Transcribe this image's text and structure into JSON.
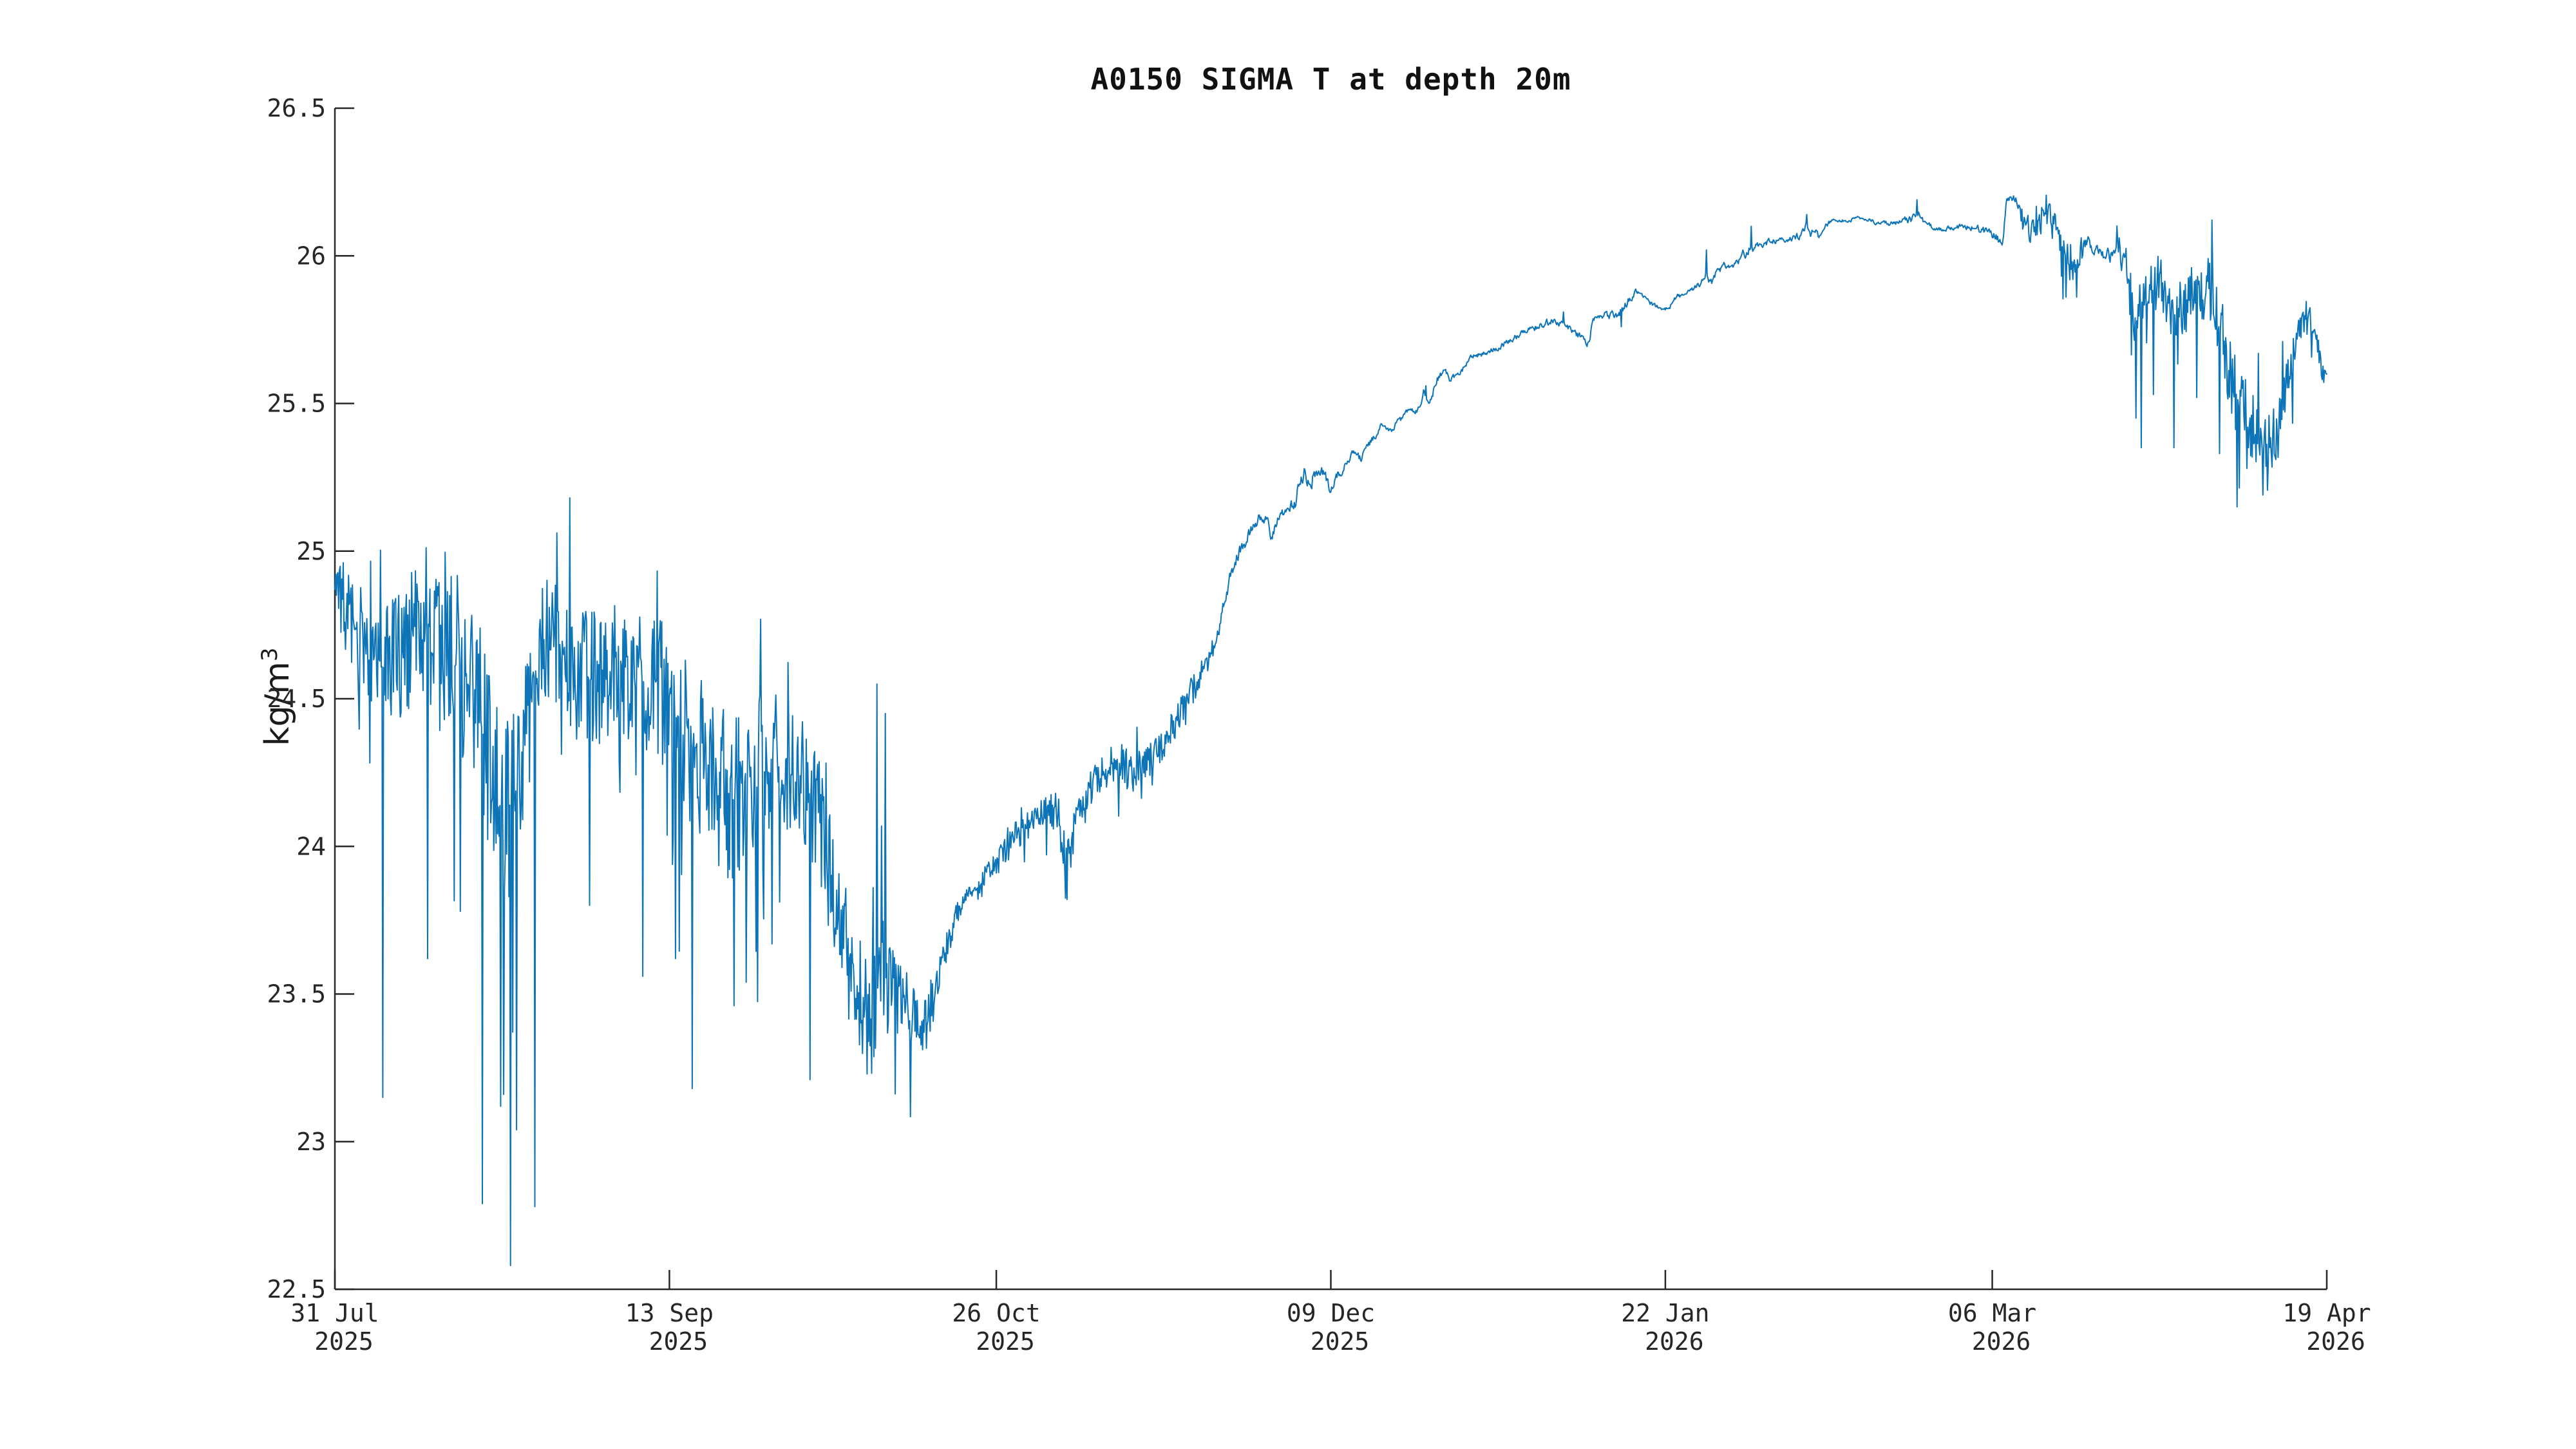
{
  "page": {
    "background_color": "#ffffff"
  },
  "chart_data": {
    "type": "line",
    "title": "A0150 SIGMA T at depth 20m",
    "ylabel_base": "kg/m",
    "ylabel_exponent": "3",
    "xlabel": "",
    "series_color": "#0d74b8",
    "axis_color": "#262626",
    "title_color": "#111111",
    "grid": "off",
    "legend": "none",
    "ylim": [
      22.5,
      26.5
    ],
    "x_range_days": [
      0,
      262
    ],
    "ytick_labels": [
      "26.5",
      "26",
      "25.5",
      "25",
      "24.5",
      "24",
      "23.5",
      "23",
      "22.5"
    ],
    "ytick_values": [
      26.5,
      26.0,
      25.5,
      25.0,
      24.5,
      24.0,
      23.5,
      23.0,
      22.5
    ],
    "xticks": [
      {
        "day": 0,
        "label": "31 Jul",
        "year": "2025"
      },
      {
        "day": 44,
        "label": "13 Sep",
        "year": "2025"
      },
      {
        "day": 87,
        "label": "26 Oct",
        "year": "2025"
      },
      {
        "day": 131,
        "label": "09 Dec",
        "year": "2025"
      },
      {
        "day": 175,
        "label": "22 Jan",
        "year": "2026"
      },
      {
        "day": 218,
        "label": "06 Mar",
        "year": "2026"
      },
      {
        "day": 262,
        "label": "19 Apr",
        "year": "2026"
      }
    ],
    "samples_per_day": 10,
    "seed": 7,
    "trend": [
      [
        0,
        24.87
      ],
      [
        1,
        24.82
      ],
      [
        2,
        24.77
      ],
      [
        3,
        24.7
      ],
      [
        5,
        24.62
      ],
      [
        7,
        24.6
      ],
      [
        9,
        24.67
      ],
      [
        11,
        24.72
      ],
      [
        13,
        24.77
      ],
      [
        15,
        24.7
      ],
      [
        17,
        24.59
      ],
      [
        19,
        24.44
      ],
      [
        20,
        24.32
      ],
      [
        21,
        24.18
      ],
      [
        22,
        24.12
      ],
      [
        23,
        24.14
      ],
      [
        24,
        24.2
      ],
      [
        25,
        24.36
      ],
      [
        26,
        24.55
      ],
      [
        27,
        24.66
      ],
      [
        28,
        24.7
      ],
      [
        29,
        24.69
      ],
      [
        30,
        24.63
      ],
      [
        32,
        24.57
      ],
      [
        34,
        24.56
      ],
      [
        36,
        24.6
      ],
      [
        38,
        24.6
      ],
      [
        40,
        24.57
      ],
      [
        42,
        24.53
      ],
      [
        44,
        24.49
      ],
      [
        46,
        24.37
      ],
      [
        48,
        24.3
      ],
      [
        50,
        24.24
      ],
      [
        52,
        24.15
      ],
      [
        54,
        24.19
      ],
      [
        56,
        24.26
      ],
      [
        58,
        24.31
      ],
      [
        60,
        24.29
      ],
      [
        62,
        24.21
      ],
      [
        64,
        24.05
      ],
      [
        66,
        23.8
      ],
      [
        68,
        23.57
      ],
      [
        70,
        23.42
      ],
      [
        71,
        23.48
      ],
      [
        72,
        23.58
      ],
      [
        73,
        23.53
      ],
      [
        74,
        23.45
      ],
      [
        75,
        23.49
      ],
      [
        76,
        23.42
      ],
      [
        77,
        23.36
      ],
      [
        78,
        23.42
      ],
      [
        79,
        23.54
      ],
      [
        80,
        23.62
      ],
      [
        81,
        23.7
      ],
      [
        82,
        23.79
      ],
      [
        83,
        23.85
      ],
      [
        85,
        23.87
      ],
      [
        87,
        23.94
      ],
      [
        89,
        24.02
      ],
      [
        91,
        24.07
      ],
      [
        93,
        24.11
      ],
      [
        95,
        24.12
      ],
      [
        96,
        23.97
      ],
      [
        97,
        24.09
      ],
      [
        99,
        24.18
      ],
      [
        101,
        24.26
      ],
      [
        103,
        24.28
      ],
      [
        105,
        24.24
      ],
      [
        107,
        24.31
      ],
      [
        109,
        24.35
      ],
      [
        111,
        24.44
      ],
      [
        113,
        24.54
      ],
      [
        115,
        24.63
      ],
      [
        116,
        24.7
      ],
      [
        117,
        24.82
      ],
      [
        118,
        24.94
      ],
      [
        119,
        25.0
      ],
      [
        120,
        25.05
      ],
      [
        121,
        25.1
      ],
      [
        122.5,
        25.12
      ],
      [
        123.2,
        25.05
      ],
      [
        124,
        25.1
      ],
      [
        125,
        25.14
      ],
      [
        126.3,
        25.16
      ],
      [
        127,
        25.25
      ],
      [
        128,
        25.23
      ],
      [
        129,
        25.27
      ],
      [
        130,
        25.25
      ],
      [
        131,
        25.22
      ],
      [
        132,
        25.26
      ],
      [
        133,
        25.3
      ],
      [
        134,
        25.33
      ],
      [
        135,
        25.31
      ],
      [
        136,
        25.36
      ],
      [
        137,
        25.4
      ],
      [
        138,
        25.43
      ],
      [
        139,
        25.41
      ],
      [
        140,
        25.44
      ],
      [
        141,
        25.47
      ],
      [
        142.5,
        25.48
      ],
      [
        143.2,
        25.54
      ],
      [
        143.8,
        25.5
      ],
      [
        145,
        25.58
      ],
      [
        146,
        25.62
      ],
      [
        146.6,
        25.58
      ],
      [
        147.5,
        25.59
      ],
      [
        148.5,
        25.62
      ],
      [
        149.5,
        25.66
      ],
      [
        151,
        25.67
      ],
      [
        153,
        25.69
      ],
      [
        155,
        25.72
      ],
      [
        157,
        25.75
      ],
      [
        159,
        25.77
      ],
      [
        160.5,
        25.78
      ],
      [
        162,
        25.77
      ],
      [
        163,
        25.75
      ],
      [
        164,
        25.72
      ],
      [
        165,
        25.7
      ],
      [
        165.5,
        25.79
      ],
      [
        167,
        25.8
      ],
      [
        168.5,
        25.8
      ],
      [
        169.5,
        25.83
      ],
      [
        170.5,
        25.86
      ],
      [
        171.3,
        25.88
      ],
      [
        172.2,
        25.86
      ],
      [
        173,
        25.84
      ],
      [
        174,
        25.83
      ],
      [
        174.8,
        25.81
      ],
      [
        175.6,
        25.83
      ],
      [
        176.5,
        25.86
      ],
      [
        178,
        25.88
      ],
      [
        179.5,
        25.9
      ],
      [
        180.3,
        25.94
      ],
      [
        181,
        25.91
      ],
      [
        182,
        25.95
      ],
      [
        183,
        25.97
      ],
      [
        184,
        25.97
      ],
      [
        185,
        26.0
      ],
      [
        186,
        26.02
      ],
      [
        187,
        26.04
      ],
      [
        188,
        26.05
      ],
      [
        190,
        26.05
      ],
      [
        192,
        26.06
      ],
      [
        193,
        26.08
      ],
      [
        193.5,
        26.11
      ],
      [
        194.1,
        26.07
      ],
      [
        194.6,
        26.09
      ],
      [
        195.2,
        26.06
      ],
      [
        196,
        26.1
      ],
      [
        197,
        26.12
      ],
      [
        199,
        26.12
      ],
      [
        201,
        26.13
      ],
      [
        203,
        26.11
      ],
      [
        205,
        26.11
      ],
      [
        207,
        26.12
      ],
      [
        208,
        26.14
      ],
      [
        208.6,
        26.13
      ],
      [
        209.3,
        26.11
      ],
      [
        210.5,
        26.09
      ],
      [
        212,
        26.09
      ],
      [
        214,
        26.1
      ],
      [
        216,
        26.09
      ],
      [
        217.5,
        26.08
      ],
      [
        218.6,
        26.06
      ],
      [
        219.3,
        26.03
      ],
      [
        219.9,
        26.19
      ],
      [
        220.5,
        26.2
      ],
      [
        221.2,
        26.18
      ],
      [
        221.9,
        26.12
      ],
      [
        222.5,
        26.15
      ],
      [
        223.1,
        26.06
      ],
      [
        223.6,
        26.13
      ],
      [
        224.2,
        26.09
      ],
      [
        224.9,
        26.17
      ],
      [
        225.5,
        26.13
      ],
      [
        226.2,
        26.09
      ],
      [
        227,
        26.02
      ],
      [
        228,
        25.99
      ],
      [
        229,
        25.97
      ],
      [
        229.6,
        26.02
      ],
      [
        230.3,
        26.05
      ],
      [
        231,
        26.03
      ],
      [
        232,
        26.02
      ],
      [
        233,
        26.0
      ],
      [
        234,
        25.99
      ],
      [
        235,
        26.01
      ],
      [
        235.8,
        25.97
      ],
      [
        236.4,
        25.81
      ],
      [
        237,
        25.78
      ],
      [
        238,
        25.87
      ],
      [
        239,
        25.88
      ],
      [
        240,
        25.91
      ],
      [
        241,
        25.84
      ],
      [
        242,
        25.8
      ],
      [
        243,
        25.79
      ],
      [
        244,
        25.87
      ],
      [
        245,
        25.93
      ],
      [
        245.6,
        25.86
      ],
      [
        246.2,
        25.91
      ],
      [
        247,
        25.84
      ],
      [
        248,
        25.74
      ],
      [
        249,
        25.64
      ],
      [
        250,
        25.54
      ],
      [
        251,
        25.45
      ],
      [
        252,
        25.4
      ],
      [
        253,
        25.36
      ],
      [
        254,
        25.33
      ],
      [
        255,
        25.38
      ],
      [
        256,
        25.43
      ],
      [
        257,
        25.59
      ],
      [
        258,
        25.74
      ],
      [
        259,
        25.8
      ],
      [
        260,
        25.77
      ],
      [
        261,
        25.68
      ],
      [
        262,
        25.56
      ]
    ],
    "noise_amplitude": [
      [
        0,
        0.14
      ],
      [
        4,
        0.2
      ],
      [
        8,
        0.24
      ],
      [
        12,
        0.28
      ],
      [
        16,
        0.3
      ],
      [
        19,
        0.33
      ],
      [
        22,
        0.33
      ],
      [
        25,
        0.28
      ],
      [
        27,
        0.2
      ],
      [
        30,
        0.24
      ],
      [
        34,
        0.24
      ],
      [
        38,
        0.23
      ],
      [
        42,
        0.25
      ],
      [
        46,
        0.27
      ],
      [
        50,
        0.29
      ],
      [
        54,
        0.27
      ],
      [
        58,
        0.25
      ],
      [
        62,
        0.23
      ],
      [
        65,
        0.21
      ],
      [
        68,
        0.2
      ],
      [
        70,
        0.22
      ],
      [
        72,
        0.2
      ],
      [
        74,
        0.16
      ],
      [
        76,
        0.12
      ],
      [
        78,
        0.09
      ],
      [
        80,
        0.05
      ],
      [
        83,
        0.04
      ],
      [
        86,
        0.05
      ],
      [
        90,
        0.05
      ],
      [
        94,
        0.06
      ],
      [
        96,
        0.09
      ],
      [
        98,
        0.05
      ],
      [
        101,
        0.065
      ],
      [
        105,
        0.065
      ],
      [
        109,
        0.055
      ],
      [
        113,
        0.05
      ],
      [
        117,
        0.035
      ],
      [
        121,
        0.03
      ],
      [
        125,
        0.022
      ],
      [
        127.5,
        0.04
      ],
      [
        130,
        0.035
      ],
      [
        133,
        0.018
      ],
      [
        137,
        0.018
      ],
      [
        141,
        0.014
      ],
      [
        144,
        0.02
      ],
      [
        148,
        0.014
      ],
      [
        152,
        0.012
      ],
      [
        156,
        0.014
      ],
      [
        160,
        0.018
      ],
      [
        163,
        0.02
      ],
      [
        166,
        0.012
      ],
      [
        169,
        0.025
      ],
      [
        172,
        0.012
      ],
      [
        176,
        0.012
      ],
      [
        179,
        0.016
      ],
      [
        181,
        0.022
      ],
      [
        184,
        0.014
      ],
      [
        186,
        0.03
      ],
      [
        188,
        0.018
      ],
      [
        191,
        0.013
      ],
      [
        193.8,
        0.026
      ],
      [
        197,
        0.008
      ],
      [
        201,
        0.008
      ],
      [
        205,
        0.011
      ],
      [
        207.8,
        0.022
      ],
      [
        210,
        0.012
      ],
      [
        213,
        0.012
      ],
      [
        216,
        0.018
      ],
      [
        218.5,
        0.022
      ],
      [
        220.5,
        0.018
      ],
      [
        222,
        0.045
      ],
      [
        224,
        0.055
      ],
      [
        226,
        0.055
      ],
      [
        228,
        0.08
      ],
      [
        230,
        0.038
      ],
      [
        232,
        0.028
      ],
      [
        234,
        0.038
      ],
      [
        236,
        0.1
      ],
      [
        238,
        0.09
      ],
      [
        240,
        0.095
      ],
      [
        242,
        0.095
      ],
      [
        244,
        0.095
      ],
      [
        246,
        0.1
      ],
      [
        248,
        0.13
      ],
      [
        250,
        0.15
      ],
      [
        252,
        0.145
      ],
      [
        254,
        0.12
      ],
      [
        256,
        0.115
      ],
      [
        258,
        0.065
      ],
      [
        260,
        0.05
      ],
      [
        262,
        0.055
      ]
    ],
    "spikes": [
      [
        6.3,
        23.15
      ],
      [
        12.2,
        23.62
      ],
      [
        16.5,
        23.78
      ],
      [
        19.4,
        22.79
      ],
      [
        21.8,
        23.12
      ],
      [
        23.1,
        22.58
      ],
      [
        23.9,
        23.04
      ],
      [
        26.3,
        22.78
      ],
      [
        33.5,
        23.8
      ],
      [
        40.5,
        23.56
      ],
      [
        44.8,
        23.62
      ],
      [
        47.0,
        23.18
      ],
      [
        52.5,
        23.46
      ],
      [
        57.5,
        23.67
      ],
      [
        62.5,
        23.21
      ],
      [
        71.3,
        24.55
      ],
      [
        72.4,
        24.45
      ],
      [
        96.3,
        23.82
      ],
      [
        143.5,
        25.56
      ],
      [
        161.6,
        25.81
      ],
      [
        169.2,
        25.76
      ],
      [
        180.4,
        26.02
      ],
      [
        186.3,
        26.1
      ],
      [
        193.6,
        26.14
      ],
      [
        208.1,
        26.19
      ],
      [
        227.7,
        25.86
      ],
      [
        228.6,
        25.92
      ],
      [
        229.1,
        25.86
      ],
      [
        236.9,
        25.45
      ],
      [
        237.6,
        25.35
      ],
      [
        239.2,
        25.53
      ],
      [
        241.9,
        25.35
      ],
      [
        244.9,
        25.52
      ],
      [
        247.9,
        25.33
      ],
      [
        250.2,
        25.15
      ],
      [
        251.5,
        25.28
      ],
      [
        253.0,
        25.67
      ],
      [
        253.6,
        25.19
      ],
      [
        256.2,
        25.71
      ]
    ]
  }
}
